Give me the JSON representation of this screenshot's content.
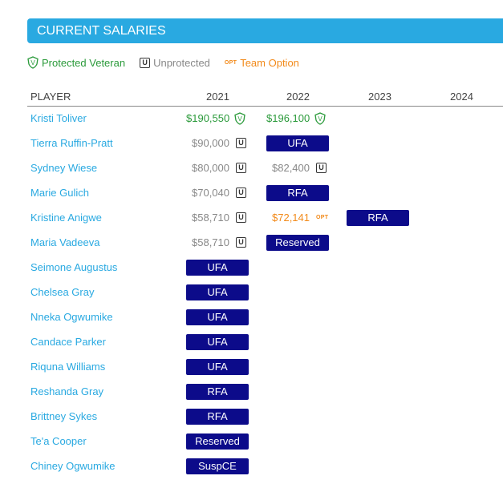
{
  "header": {
    "title": "CURRENT SALARIES"
  },
  "legend": {
    "protected": "Protected Veteran",
    "unprotected": "Unprotected",
    "opt_badge": "OPT",
    "option": "Team Option"
  },
  "columns": {
    "player": "PLAYER",
    "y1": "2021",
    "y2": "2022",
    "y3": "2023",
    "y4": "2024"
  },
  "colors": {
    "accent": "#29a9e1",
    "tag": "#0c0b8a",
    "green": "#2a9a3a",
    "orange": "#f28a1a"
  },
  "players": [
    {
      "name": "Kristi Toliver",
      "s2021": "$190,550",
      "s2022": "$196,100"
    },
    {
      "name": "Tierra Ruffin-Pratt",
      "s2021": "$90,000",
      "t2022": "UFA"
    },
    {
      "name": "Sydney Wiese",
      "s2021": "$80,000",
      "s2022": "$82,400"
    },
    {
      "name": "Marie Gulich",
      "s2021": "$70,040",
      "t2022": "RFA"
    },
    {
      "name": "Kristine Anigwe",
      "s2021": "$58,710",
      "s2022": "$72,141",
      "t2023": "RFA"
    },
    {
      "name": "Maria Vadeeva",
      "s2021": "$58,710",
      "t2022": "Reserved"
    },
    {
      "name": "Seimone Augustus",
      "t2021": "UFA"
    },
    {
      "name": "Chelsea Gray",
      "t2021": "UFA"
    },
    {
      "name": "Nneka Ogwumike",
      "t2021": "UFA"
    },
    {
      "name": "Candace Parker",
      "t2021": "UFA"
    },
    {
      "name": "Riquna Williams",
      "t2021": "UFA"
    },
    {
      "name": "Reshanda Gray",
      "t2021": "RFA"
    },
    {
      "name": "Brittney Sykes",
      "t2021": "RFA"
    },
    {
      "name": "Te'a Cooper",
      "t2021": "Reserved"
    },
    {
      "name": "Chiney Ogwumike",
      "t2021": "SuspCE"
    }
  ]
}
